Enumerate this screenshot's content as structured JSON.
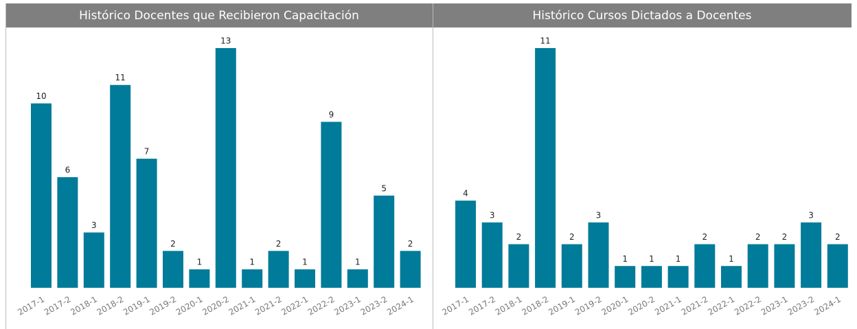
{
  "chart_data": [
    {
      "type": "bar",
      "title": "Histórico Docentes que Recibieron Capacitación",
      "color": "#007b99",
      "categories": [
        "2017-1",
        "2017-2",
        "2018-1",
        "2018-2",
        "2019-1",
        "2019-2",
        "2020-1",
        "2020-2",
        "2021-1",
        "2021-2",
        "2022-1",
        "2022-2",
        "2023-1",
        "2023-2",
        "2024-1"
      ],
      "values": [
        10,
        6,
        3,
        11,
        7,
        2,
        1,
        13,
        1,
        2,
        1,
        9,
        1,
        5,
        2
      ]
    },
    {
      "type": "bar",
      "title": "Histórico Cursos Dictados a Docentes",
      "color": "#007b99",
      "categories": [
        "2017-1",
        "2017-2",
        "2018-1",
        "2018-2",
        "2019-1",
        "2019-2",
        "2020-1",
        "2020-2",
        "2021-1",
        "2021-2",
        "2022-1",
        "2022-2",
        "2023-1",
        "2023-2",
        "2024-1"
      ],
      "values": [
        4,
        3,
        2,
        11,
        2,
        3,
        1,
        1,
        1,
        2,
        1,
        2,
        2,
        3,
        2
      ]
    }
  ]
}
